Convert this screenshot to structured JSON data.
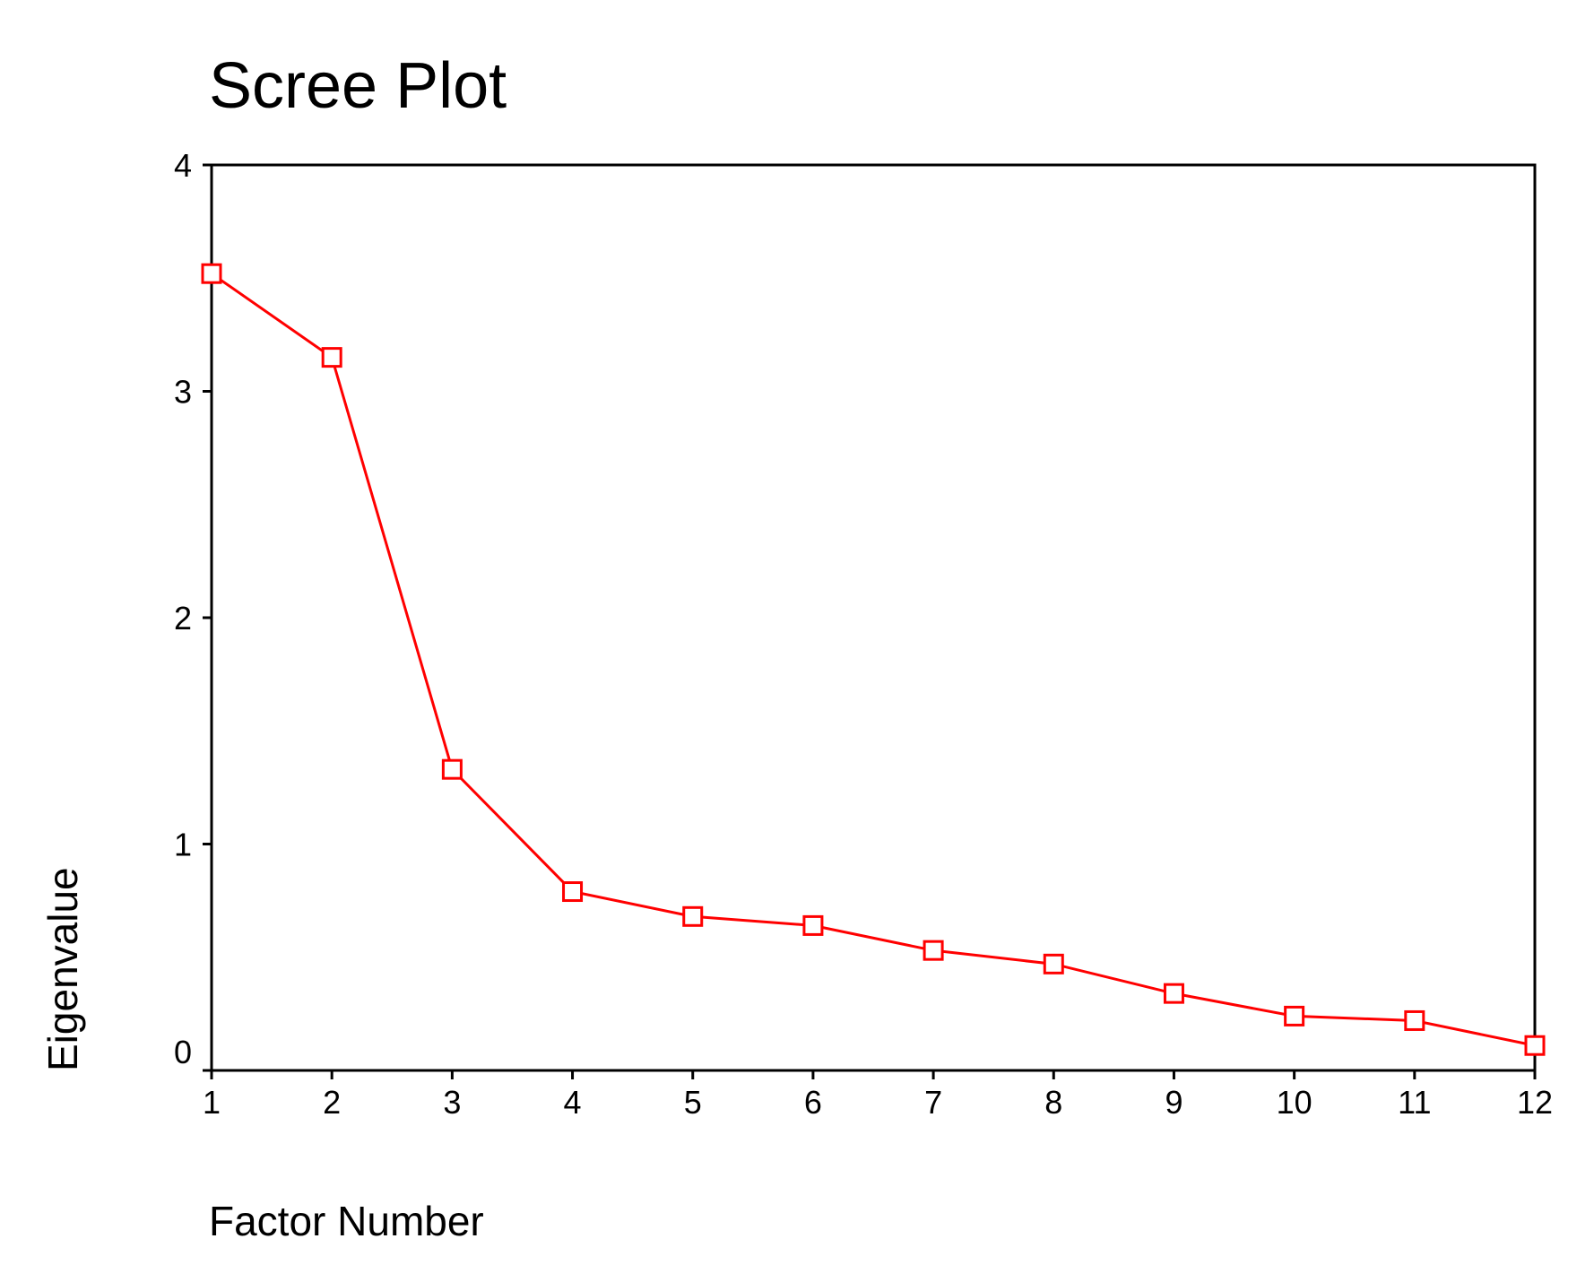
{
  "chart_data": {
    "type": "line",
    "title": "Scree Plot",
    "xlabel": "Factor Number",
    "ylabel": "Eigenvalue",
    "x": [
      1,
      2,
      3,
      4,
      5,
      6,
      7,
      8,
      9,
      10,
      11,
      12
    ],
    "series": [
      {
        "values": [
          3.52,
          3.15,
          1.33,
          0.79,
          0.68,
          0.64,
          0.53,
          0.47,
          0.34,
          0.24,
          0.22,
          0.11
        ],
        "color": "#ff0000",
        "marker": "open-square"
      }
    ],
    "xlim": [
      1,
      12
    ],
    "ylim": [
      0,
      4
    ],
    "xticks": [
      "1",
      "2",
      "3",
      "4",
      "5",
      "6",
      "7",
      "8",
      "9",
      "10",
      "11",
      "12"
    ],
    "yticks": [
      "0",
      "1",
      "2",
      "3",
      "4"
    ],
    "grid": false,
    "legend": "none"
  }
}
